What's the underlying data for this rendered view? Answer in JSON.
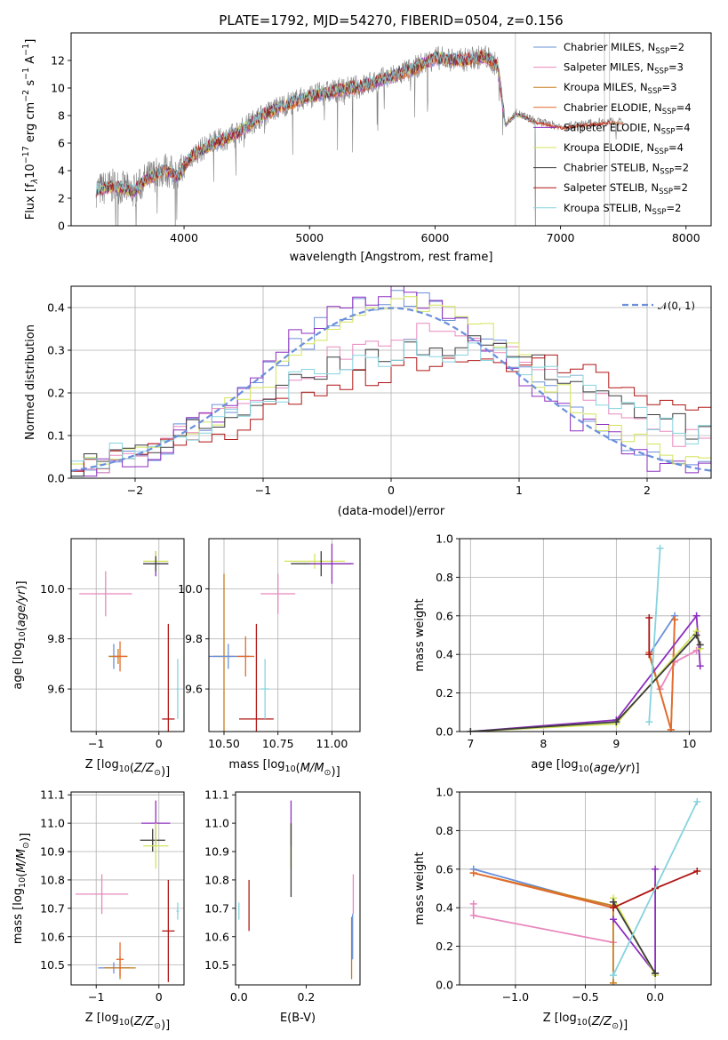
{
  "chart_data": [
    {
      "id": "spectrum",
      "type": "line",
      "title": "PLATE=1792, MJD=54270, FIBERID=0504, z=0.156",
      "xlabel": "wavelength [Angstrom, rest frame]",
      "ylabel": [
        "Flux [f",
        "λ",
        "10",
        "−17",
        " erg cm",
        "−2",
        " s",
        "−1",
        " A",
        "−1",
        "]"
      ],
      "xlim": [
        3100,
        8200
      ],
      "ylim": [
        0,
        14
      ],
      "xticks": [
        4000,
        5000,
        6000,
        7000,
        8000
      ],
      "yticks": [
        0,
        2,
        4,
        6,
        8,
        10,
        12
      ],
      "xtick_labels": [
        "4000",
        "5000",
        "6000",
        "7000",
        "8000"
      ],
      "ytick_labels": [
        "0",
        "2",
        "4",
        "6",
        "8",
        "10",
        "12"
      ],
      "grid": false,
      "legend_position": "top-right",
      "legend": [
        {
          "label": "Chabrier MILES, N",
          "sub": "SSP",
          "tail": "=2",
          "color": "#6a8fdb"
        },
        {
          "label": "Salpeter MILES, N",
          "sub": "SSP",
          "tail": "=3",
          "color": "#e888bd"
        },
        {
          "label": "Kroupa MILES, N",
          "sub": "SSP",
          "tail": "=3",
          "color": "#c77e1e"
        },
        {
          "label": "Chabrier ELODIE, N",
          "sub": "SSP",
          "tail": "=4",
          "color": "#e36b2f"
        },
        {
          "label": "Salpeter ELODIE, N",
          "sub": "SSP",
          "tail": "=4",
          "color": "#8d2fbf"
        },
        {
          "label": "Kroupa ELODIE, N",
          "sub": "SSP",
          "tail": "=4",
          "color": "#d4e35a"
        },
        {
          "label": "Chabrier STELIB, N",
          "sub": "SSP",
          "tail": "=2",
          "color": "#3c3c3c"
        },
        {
          "label": "Salpeter STELIB, N",
          "sub": "SSP",
          "tail": "=2",
          "color": "#b01515"
        },
        {
          "label": "Kroupa STELIB, N",
          "sub": "SSP",
          "tail": "=2",
          "color": "#86d3df"
        }
      ],
      "data_color": "#808080",
      "continuum": [
        [
          3300,
          2.6
        ],
        [
          3450,
          2.9
        ],
        [
          3600,
          2.5
        ],
        [
          3700,
          3.4
        ],
        [
          3850,
          4.1
        ],
        [
          3950,
          3.6
        ],
        [
          4050,
          5.0
        ],
        [
          4200,
          5.9
        ],
        [
          4400,
          6.6
        ],
        [
          4600,
          7.9
        ],
        [
          4800,
          8.8
        ],
        [
          5000,
          9.4
        ],
        [
          5200,
          9.8
        ],
        [
          5400,
          10.1
        ],
        [
          5600,
          10.7
        ],
        [
          5800,
          11.3
        ],
        [
          6000,
          12.2
        ],
        [
          6200,
          12.0
        ],
        [
          6400,
          12.3
        ],
        [
          6500,
          11.6
        ],
        [
          6560,
          7.4
        ],
        [
          6650,
          8.2
        ],
        [
          6800,
          7.6
        ],
        [
          7000,
          7.2
        ],
        [
          7200,
          7.4
        ],
        [
          7400,
          7.6
        ],
        [
          7500,
          7.5
        ]
      ],
      "vertical_lines": [
        6640,
        7350,
        7390
      ]
    },
    {
      "id": "residual-hist",
      "type": "line",
      "xlabel": "(data-model)/error",
      "ylabel": "Normed distribution",
      "xlim": [
        -2.5,
        2.5
      ],
      "ylim": [
        0,
        0.45
      ],
      "xticks": [
        -2,
        -1,
        0,
        1,
        2
      ],
      "xtick_labels": [
        "−2",
        "−1",
        "0",
        "1",
        "2"
      ],
      "yticks": [
        0,
        0.1,
        0.2,
        0.3,
        0.4
      ],
      "ytick_labels": [
        "0.0",
        "0.1",
        "0.2",
        "0.3",
        "0.4"
      ],
      "grid": true,
      "legend_position": "top-right",
      "gaussian_label": "𝒩(0, 1)",
      "gaussian_color": "#6a8fdb",
      "histograms": [
        {
          "color": "#6a8fdb",
          "shift": 0.0,
          "scale": 1.0
        },
        {
          "color": "#e888bd",
          "shift": 0.25,
          "scale": 1.25
        },
        {
          "color": "#8d2fbf",
          "shift": -0.05,
          "scale": 0.95
        },
        {
          "color": "#d4e35a",
          "shift": 0.05,
          "scale": 1.0
        },
        {
          "color": "#3c3c3c",
          "shift": 0.35,
          "scale": 1.35
        },
        {
          "color": "#b01515",
          "shift": 0.65,
          "scale": 1.5
        },
        {
          "color": "#86d3df",
          "shift": 0.3,
          "scale": 1.4
        }
      ]
    },
    {
      "id": "age-vs-z",
      "type": "scatter",
      "xlabel": "Z [log10(Z/Z⊙)]",
      "ylabel": "age  [log10(age/yr)]",
      "xlim": [
        -1.4,
        0.4
      ],
      "ylim": [
        9.43,
        10.2
      ],
      "xticks": [
        -1,
        0
      ],
      "xtick_labels": [
        "−1",
        "0"
      ],
      "yticks": [
        9.6,
        9.8,
        10.0
      ],
      "ytick_labels": [
        "9.6",
        "9.8",
        "10.0"
      ],
      "grid": true,
      "points": [
        {
          "x": -0.85,
          "y": 9.98,
          "xerr": 0.42,
          "yerr": 0.09,
          "color": "#e888bd"
        },
        {
          "x": -0.72,
          "y": 9.73,
          "xerr": 0.08,
          "yerr": 0.05,
          "color": "#6a8fdb"
        },
        {
          "x": -0.65,
          "y": 9.73,
          "xerr": 0.15,
          "yerr": 0.03,
          "color": "#c77e1e"
        },
        {
          "x": -0.62,
          "y": 9.73,
          "xerr": 0.1,
          "yerr": 0.06,
          "color": "#e36b2f"
        },
        {
          "x": -0.05,
          "y": 10.1,
          "xerr": 0.2,
          "yerr": 0.05,
          "color": "#8d2fbf"
        },
        {
          "x": -0.05,
          "y": 10.11,
          "xerr": 0.2,
          "yerr": 0.04,
          "color": "#d4e35a"
        },
        {
          "x": -0.05,
          "y": 10.1,
          "xerr": 0.2,
          "yerr": 0.03,
          "color": "#3c3c3c"
        },
        {
          "x": 0.15,
          "y": 9.48,
          "xerr": 0.1,
          "yerr": 0.38,
          "color": "#b01515"
        },
        {
          "x": 0.3,
          "y": 9.6,
          "xerr": 0.02,
          "yerr": 0.12,
          "color": "#86d3df"
        }
      ]
    },
    {
      "id": "age-vs-mass",
      "type": "scatter",
      "xlabel": "mass [log10(M/M⊙)]",
      "xlim": [
        10.43,
        11.13
      ],
      "ylim": [
        9.43,
        10.2
      ],
      "xticks": [
        10.5,
        10.75,
        11.0
      ],
      "xtick_labels": [
        "10.50",
        "10.75",
        "11.00"
      ],
      "yticks": [
        9.6,
        9.8,
        10.0
      ],
      "ytick_labels": [
        "9.6",
        "9.8",
        "10.0"
      ],
      "grid": true,
      "points": [
        {
          "x": 10.5,
          "y": 9.73,
          "xerr": 0.05,
          "yerr": 0.33,
          "color": "#c77e1e"
        },
        {
          "x": 10.52,
          "y": 9.73,
          "xerr": 0.1,
          "yerr": 0.05,
          "color": "#6a8fdb"
        },
        {
          "x": 10.6,
          "y": 9.73,
          "xerr": 0.04,
          "yerr": 0.08,
          "color": "#e36b2f"
        },
        {
          "x": 10.75,
          "y": 9.98,
          "xerr": 0.08,
          "yerr": 0.08,
          "color": "#e888bd"
        },
        {
          "x": 10.65,
          "y": 9.48,
          "xerr": 0.08,
          "yerr": 0.38,
          "color": "#b01515"
        },
        {
          "x": 10.69,
          "y": 9.6,
          "xerr": 0.02,
          "yerr": 0.12,
          "color": "#86d3df"
        },
        {
          "x": 10.92,
          "y": 10.11,
          "xerr": 0.14,
          "yerr": 0.03,
          "color": "#d4e35a"
        },
        {
          "x": 10.95,
          "y": 10.1,
          "xerr": 0.14,
          "yerr": 0.05,
          "color": "#3c3c3c"
        },
        {
          "x": 11.0,
          "y": 10.1,
          "xerr": 0.1,
          "yerr": 0.08,
          "color": "#8d2fbf"
        }
      ]
    },
    {
      "id": "weight-vs-age",
      "type": "line",
      "xlabel": "age  [log10(age/yr)]",
      "ylabel": "mass weight",
      "xlim": [
        6.85,
        10.3
      ],
      "ylim": [
        0,
        1
      ],
      "xticks": [
        7,
        8,
        9,
        10
      ],
      "xtick_labels": [
        "7",
        "8",
        "9",
        "10"
      ],
      "yticks": [
        0,
        0.2,
        0.4,
        0.6,
        0.8,
        1.0
      ],
      "ytick_labels": [
        "0.0",
        "0.2",
        "0.4",
        "0.6",
        "0.8",
        "1.0"
      ],
      "grid": true,
      "series": [
        {
          "color": "#6a8fdb",
          "x": [
            9.45,
            9.8
          ],
          "y": [
            0.4,
            0.6
          ]
        },
        {
          "color": "#e888bd",
          "x": [
            9.6,
            9.8,
            10.1
          ],
          "y": [
            0.22,
            0.36,
            0.42
          ]
        },
        {
          "color": "#c77e1e",
          "x": [
            9.45,
            9.75,
            9.8
          ],
          "y": [
            0.4,
            0.01,
            0.58
          ]
        },
        {
          "color": "#e36b2f",
          "x": [
            9.45,
            9.75,
            9.8
          ],
          "y": [
            0.41,
            0.01,
            0.58
          ]
        },
        {
          "color": "#8d2fbf",
          "x": [
            7.0,
            9.0,
            10.1,
            10.15
          ],
          "y": [
            0.0,
            0.06,
            0.6,
            0.34
          ]
        },
        {
          "color": "#d4e35a",
          "x": [
            7.0,
            9.0,
            10.1,
            10.15
          ],
          "y": [
            0.0,
            0.04,
            0.52,
            0.43
          ]
        },
        {
          "color": "#3c3c3c",
          "x": [
            7.0,
            9.0,
            10.1,
            10.15
          ],
          "y": [
            0.0,
            0.05,
            0.5,
            0.45
          ]
        },
        {
          "color": "#b01515",
          "x": [
            9.45,
            9.45
          ],
          "y": [
            0.4,
            0.59
          ]
        },
        {
          "color": "#86d3df",
          "x": [
            9.45,
            9.6
          ],
          "y": [
            0.05,
            0.95
          ]
        }
      ]
    },
    {
      "id": "mass-vs-z",
      "type": "scatter",
      "xlabel": "Z [log10(Z/Z⊙)]",
      "ylabel": "mass [log10(M/M⊙)]",
      "xlim": [
        -1.4,
        0.4
      ],
      "ylim": [
        10.43,
        11.11
      ],
      "xticks": [
        -1,
        0
      ],
      "xtick_labels": [
        "−1",
        "0"
      ],
      "yticks": [
        10.5,
        10.6,
        10.7,
        10.8,
        10.9,
        11.0,
        11.1
      ],
      "ytick_labels": [
        "10.5",
        "10.6",
        "10.7",
        "10.8",
        "10.9",
        "11.0",
        "11.1"
      ],
      "grid": true,
      "points": [
        {
          "x": -0.91,
          "y": 10.75,
          "xerr": 0.42,
          "yerr": 0.07,
          "color": "#e888bd"
        },
        {
          "x": -0.72,
          "y": 10.49,
          "xerr": 0.25,
          "yerr": 0.02,
          "color": "#6a8fdb"
        },
        {
          "x": -0.62,
          "y": 10.49,
          "xerr": 0.25,
          "yerr": 0.04,
          "color": "#c77e1e"
        },
        {
          "x": -0.62,
          "y": 10.52,
          "xerr": 0.06,
          "yerr": 0.06,
          "color": "#e36b2f"
        },
        {
          "x": -0.05,
          "y": 11.0,
          "xerr": 0.23,
          "yerr": 0.08,
          "color": "#8d2fbf"
        },
        {
          "x": -0.1,
          "y": 10.94,
          "xerr": 0.2,
          "yerr": 0.04,
          "color": "#3c3c3c"
        },
        {
          "x": -0.05,
          "y": 10.92,
          "xerr": 0.2,
          "yerr": 0.08,
          "color": "#d4e35a"
        },
        {
          "x": 0.15,
          "y": 10.62,
          "xerr": 0.1,
          "yerr": 0.18,
          "color": "#b01515"
        },
        {
          "x": 0.3,
          "y": 10.69,
          "xerr": 0.02,
          "yerr": 0.03,
          "color": "#86d3df"
        }
      ]
    },
    {
      "id": "mass-vs-ebv",
      "type": "scatter",
      "xlabel": "E(B-V)",
      "xlim": [
        -0.01,
        0.36
      ],
      "ylim": [
        10.43,
        11.11
      ],
      "xticks": [
        0.0,
        0.2
      ],
      "xtick_labels": [
        "0.0",
        "0.2"
      ],
      "yticks": [
        10.5,
        10.6,
        10.7,
        10.8,
        10.9,
        11.0,
        11.1
      ],
      "ytick_labels": [
        "10.5",
        "10.6",
        "10.7",
        "10.8",
        "10.9",
        "11.0",
        "11.1"
      ],
      "grid": false,
      "points": [
        {
          "x": 0.0,
          "y": 10.69,
          "xerr": 0.0,
          "yerr": 0.03,
          "color": "#86d3df"
        },
        {
          "x": 0.03,
          "y": 10.71,
          "xerr": 0.0,
          "yerr": 0.09,
          "color": "#b01515"
        },
        {
          "x": 0.155,
          "y": 11.0,
          "xerr": 0.0,
          "yerr": 0.08,
          "color": "#8d2fbf"
        },
        {
          "x": 0.155,
          "y": 10.92,
          "xerr": 0.0,
          "yerr": 0.08,
          "color": "#d4e35a"
        },
        {
          "x": 0.155,
          "y": 10.87,
          "xerr": 0.0,
          "yerr": 0.13,
          "color": "#3c3c3c"
        },
        {
          "x": 0.34,
          "y": 10.75,
          "xerr": 0.0,
          "yerr": 0.07,
          "color": "#e888bd"
        },
        {
          "x": 0.335,
          "y": 10.56,
          "xerr": 0.0,
          "yerr": 0.11,
          "color": "#c77e1e"
        },
        {
          "x": 0.338,
          "y": 10.6,
          "xerr": 0.0,
          "yerr": 0.08,
          "color": "#6a8fdb"
        }
      ]
    },
    {
      "id": "weight-vs-z",
      "type": "line",
      "xlabel": "Z [log10(Z/Z⊙)]",
      "ylabel": "mass weight",
      "xlim": [
        -1.4,
        0.4
      ],
      "ylim": [
        0,
        1
      ],
      "xticks": [
        -1.0,
        -0.5,
        0.0
      ],
      "xtick_labels": [
        "−1.0",
        "−0.5",
        "0.0"
      ],
      "yticks": [
        0,
        0.2,
        0.4,
        0.6,
        0.8,
        1.0
      ],
      "ytick_labels": [
        "0.0",
        "0.2",
        "0.4",
        "0.6",
        "0.8",
        "1.0"
      ],
      "grid": true,
      "series": [
        {
          "color": "#6a8fdb",
          "x": [
            -1.3,
            -0.3
          ],
          "y": [
            0.6,
            0.4
          ]
        },
        {
          "color": "#e888bd",
          "x": [
            -1.3,
            -1.3,
            -0.3
          ],
          "y": [
            0.42,
            0.36,
            0.22
          ]
        },
        {
          "color": "#c77e1e",
          "x": [
            -1.3,
            -0.3,
            -0.3
          ],
          "y": [
            0.58,
            0.41,
            0.01
          ]
        },
        {
          "color": "#e36b2f",
          "x": [
            -1.3,
            -0.3
          ],
          "y": [
            0.58,
            0.4
          ]
        },
        {
          "color": "#8d2fbf",
          "x": [
            -0.3,
            0.0,
            0.0
          ],
          "y": [
            0.34,
            0.06,
            0.6
          ]
        },
        {
          "color": "#d4e35a",
          "x": [
            -0.3,
            0.0
          ],
          "y": [
            0.45,
            0.05
          ]
        },
        {
          "color": "#3c3c3c",
          "x": [
            -0.3,
            0.0
          ],
          "y": [
            0.43,
            0.06
          ]
        },
        {
          "color": "#b01515",
          "x": [
            -0.3,
            0.0,
            0.3
          ],
          "y": [
            0.4,
            0.5,
            0.59
          ]
        },
        {
          "color": "#86d3df",
          "x": [
            -0.3,
            0.3
          ],
          "y": [
            0.05,
            0.95
          ]
        }
      ]
    }
  ]
}
